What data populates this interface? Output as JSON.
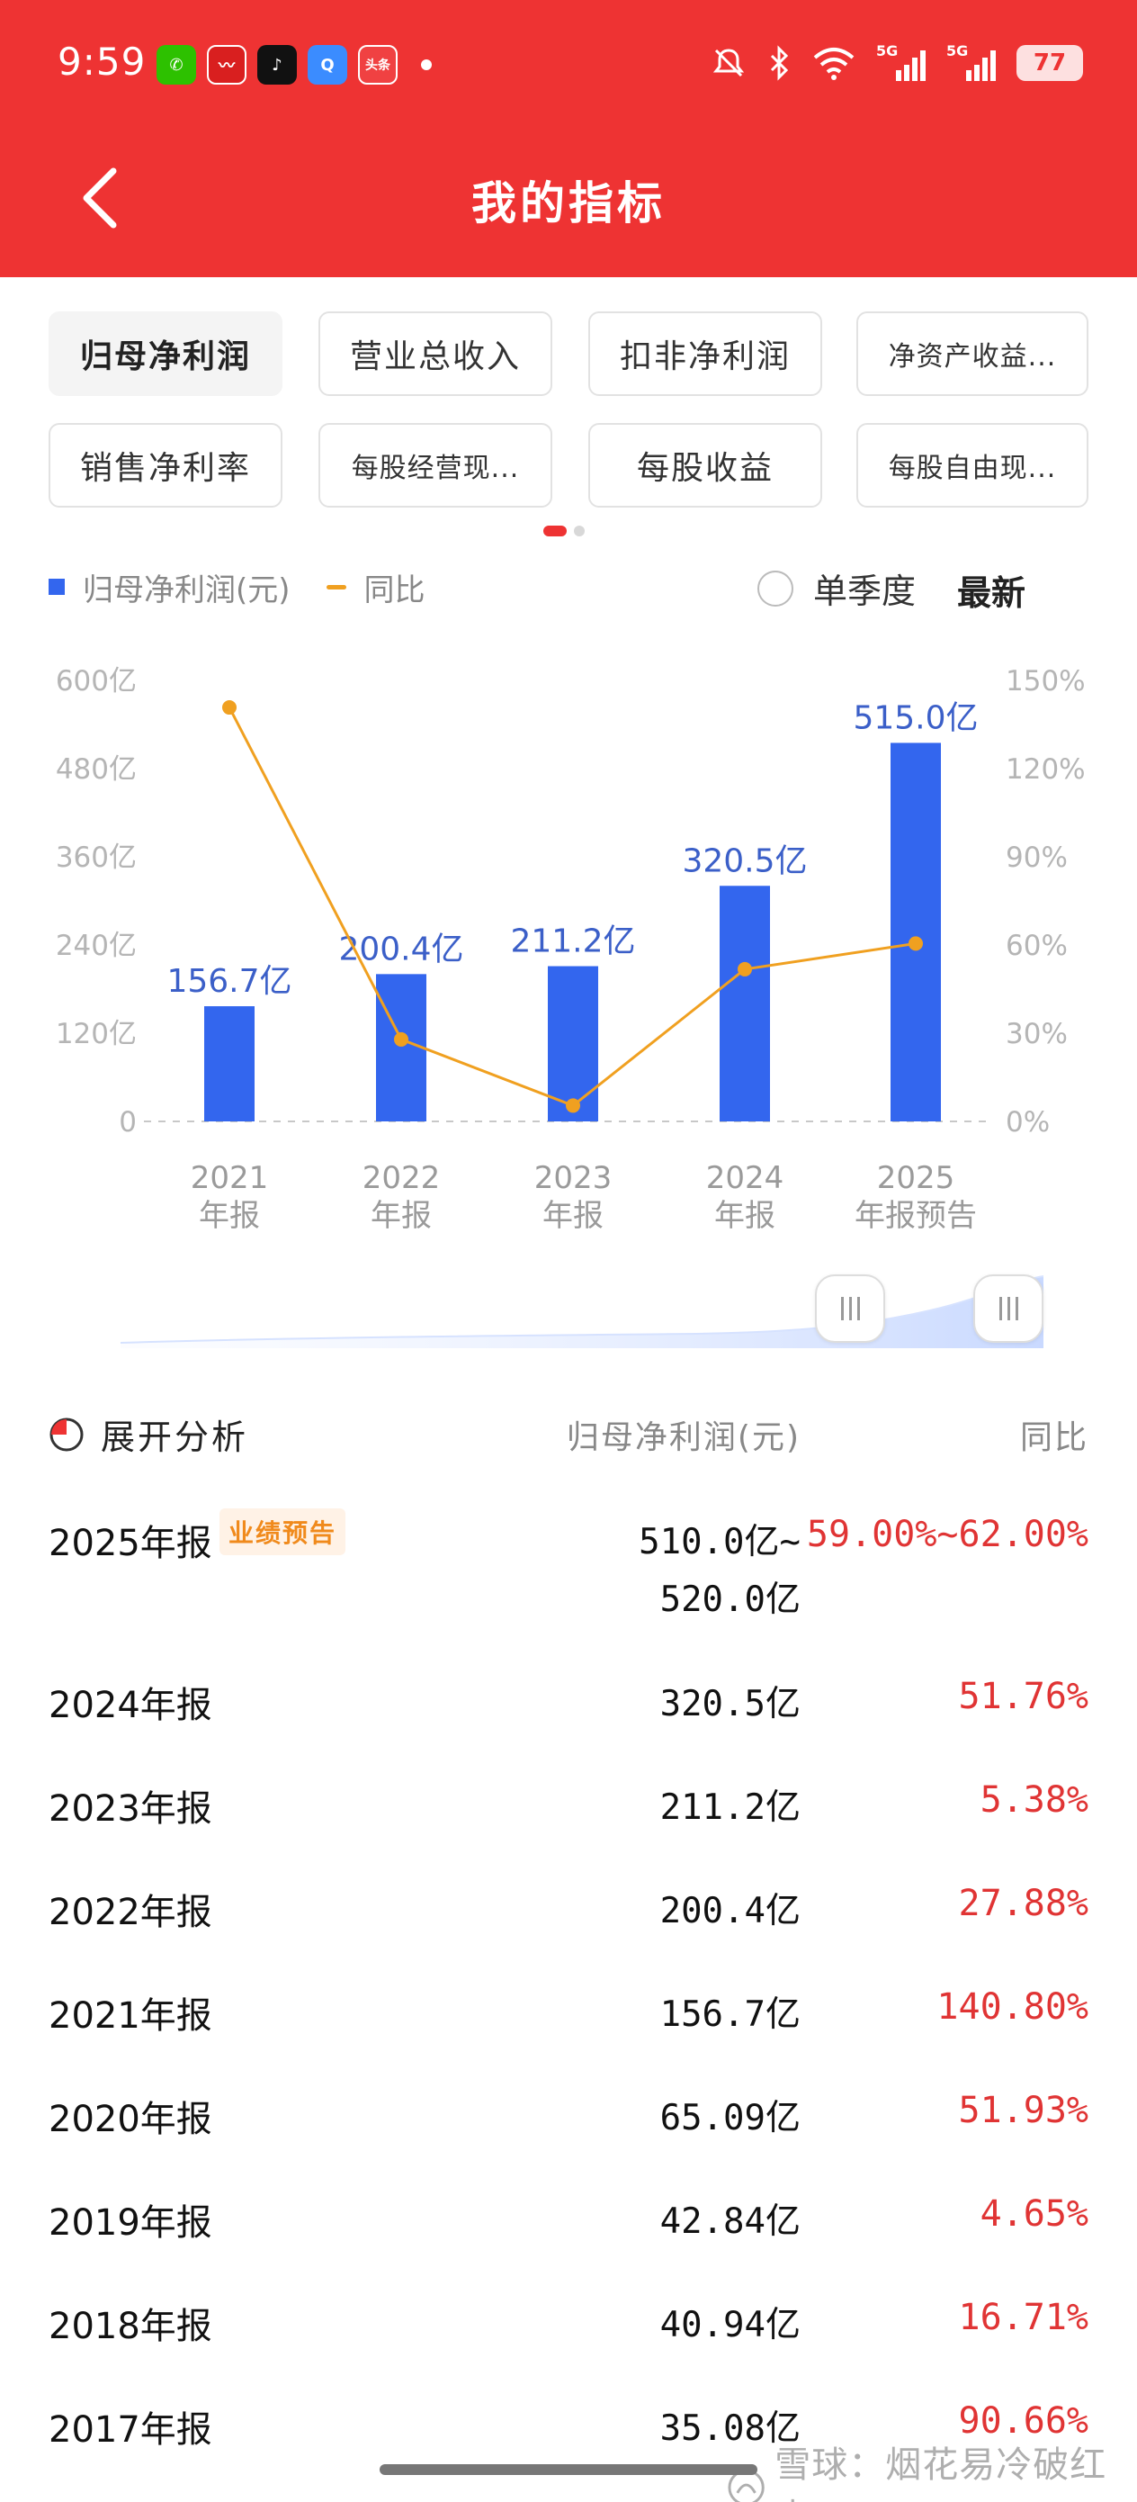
{
  "status_bar": {
    "time": "9:59",
    "apps": [
      {
        "name": "wechat-icon",
        "glyph": "✆"
      },
      {
        "name": "stock-app-icon",
        "glyph": "〰"
      },
      {
        "name": "tiktok-icon",
        "glyph": "♪"
      },
      {
        "name": "browser-icon",
        "glyph": "Q"
      },
      {
        "name": "toutiao-icon",
        "glyph": "头条"
      }
    ],
    "battery": "77",
    "signal_1": "5G",
    "signal_2": "5G"
  },
  "header": {
    "title": "我的指标",
    "back_icon": "chevron-left-icon"
  },
  "metrics": {
    "items": [
      "归母净利润",
      "营业总收入",
      "扣非净利润",
      "净资产收益...",
      "销售净利率",
      "每股经营现...",
      "每股收益",
      "每股自由现..."
    ],
    "active_index": 0
  },
  "legend": {
    "bar_label": "归母净利润(元)",
    "line_label": "同比",
    "quarter_label": "单季度",
    "latest_label": "最新"
  },
  "chart_data": {
    "type": "bar",
    "categories": [
      "2021\n年报",
      "2022\n年报",
      "2023\n年报",
      "2024\n年报",
      "2025\n年报预告"
    ],
    "series": [
      {
        "name": "归母净利润(元)",
        "type": "bar",
        "values": [
          156.7,
          200.4,
          211.2,
          320.5,
          515.0
        ],
        "labels": [
          "156.7亿",
          "200.4亿",
          "211.2亿",
          "320.5亿",
          "515.0亿"
        ],
        "color": "#3366ee"
      },
      {
        "name": "同比",
        "type": "line",
        "values": [
          140.8,
          27.88,
          5.38,
          51.76,
          60.5
        ],
        "color": "#f0a020"
      }
    ],
    "y_left": {
      "min": 0,
      "max": 600,
      "ticks": [
        "0",
        "120亿",
        "240亿",
        "360亿",
        "480亿",
        "600亿"
      ]
    },
    "y_right": {
      "min": 0,
      "max": 150,
      "ticks": [
        "0%",
        "30%",
        "60%",
        "90%",
        "120%",
        "150%"
      ]
    },
    "grid": "dashed-baseline-only"
  },
  "table": {
    "expand_label": "展开分析",
    "col_value": "归母净利润(元)",
    "col_yoy": "同比",
    "rows": [
      {
        "period": "2025年报",
        "badge": "业绩预告",
        "value": "510.0亿~",
        "value2": "520.0亿",
        "yoy": "59.00%~62.00%"
      },
      {
        "period": "2024年报",
        "value": "320.5亿",
        "yoy": "51.76%"
      },
      {
        "period": "2023年报",
        "value": "211.2亿",
        "yoy": "5.38%"
      },
      {
        "period": "2022年报",
        "value": "200.4亿",
        "yoy": "27.88%"
      },
      {
        "period": "2021年报",
        "value": "156.7亿",
        "yoy": "140.80%"
      },
      {
        "period": "2020年报",
        "value": "65.09亿",
        "yoy": "51.93%"
      },
      {
        "period": "2019年报",
        "value": "42.84亿",
        "yoy": "4.65%"
      },
      {
        "period": "2018年报",
        "value": "40.94亿",
        "yoy": "16.71%"
      },
      {
        "period": "2017年报",
        "value": "35.08亿",
        "yoy": "90.66%"
      }
    ]
  },
  "watermark": {
    "text": "雪球：烟花易冷破红尘"
  },
  "colors": {
    "brand_red": "#ee3333",
    "bar_blue": "#3366ee",
    "line_orange": "#f0a020",
    "yoy_red": "#e03434"
  }
}
